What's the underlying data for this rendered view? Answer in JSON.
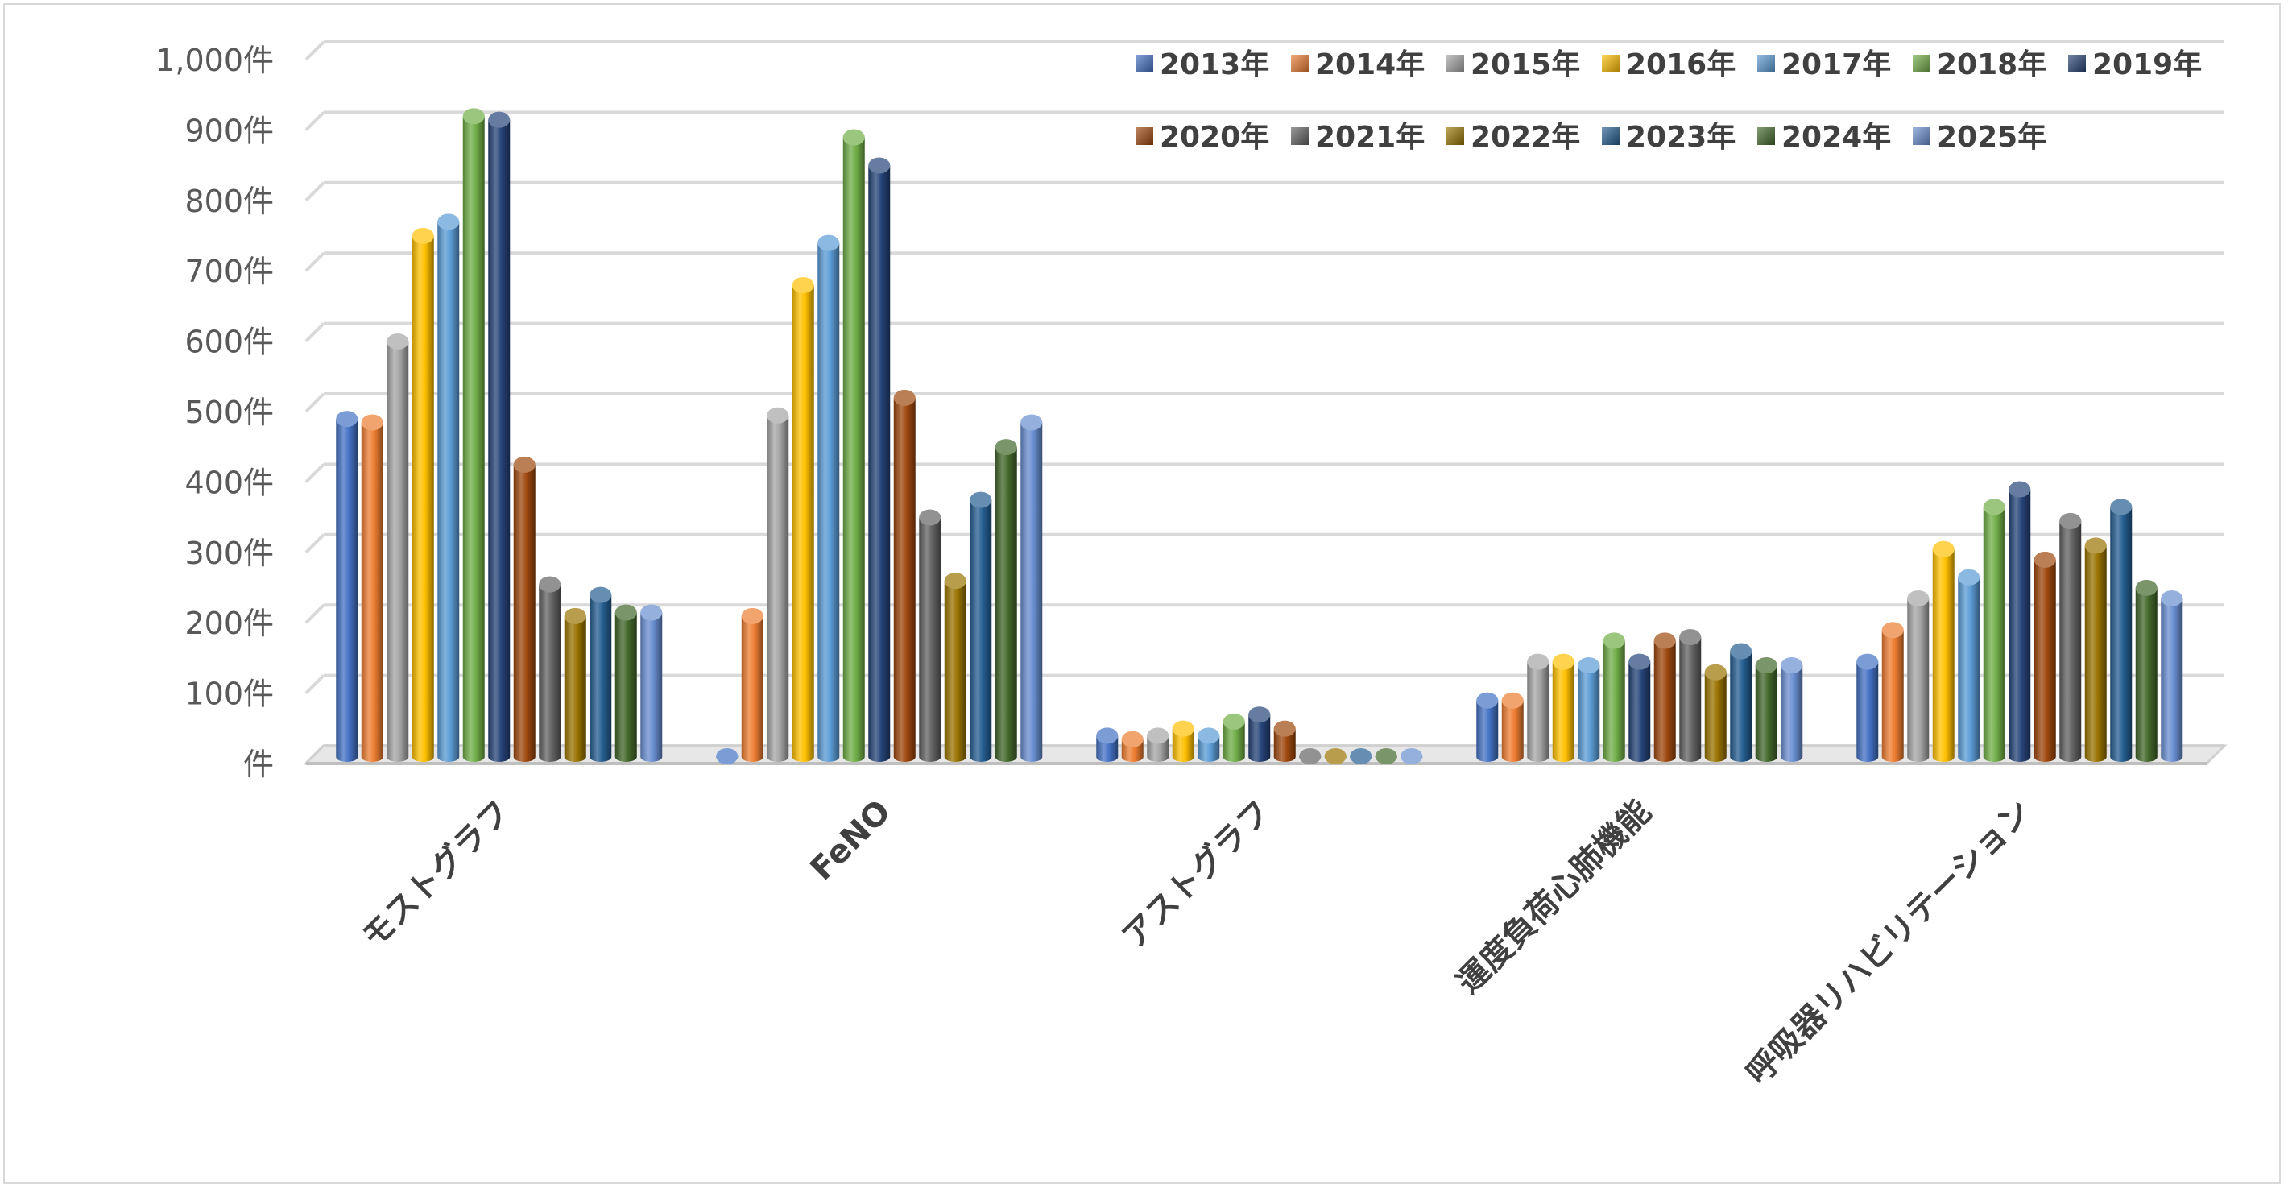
{
  "chart_data": {
    "type": "bar",
    "style": "3d-cylinder",
    "categories": [
      "モストグラフ",
      "FeNO",
      "アストグラフ",
      "運度負荷心肺機能",
      "呼吸器リハビリテーション"
    ],
    "yticks": [
      0,
      100,
      200,
      300,
      400,
      500,
      600,
      700,
      800,
      900,
      1000
    ],
    "ytick_labels": [
      "件",
      "100件",
      "200件",
      "300件",
      "400件",
      "500件",
      "600件",
      "700件",
      "800件",
      "900件",
      "1,000件"
    ],
    "ylim": [
      0,
      1000
    ],
    "grid": true,
    "legend_position": "top-right",
    "series": [
      {
        "name": "2013年",
        "color": "#4472C4",
        "values": [
          485,
          0,
          35,
          85,
          140
        ]
      },
      {
        "name": "2014年",
        "color": "#ED7D31",
        "values": [
          480,
          205,
          30,
          85,
          185
        ]
      },
      {
        "name": "2015年",
        "color": "#A5A5A5",
        "values": [
          595,
          490,
          35,
          140,
          230
        ]
      },
      {
        "name": "2016年",
        "color": "#FFC000",
        "values": [
          745,
          675,
          45,
          140,
          300
        ]
      },
      {
        "name": "2017年",
        "color": "#5B9BD5",
        "values": [
          765,
          735,
          35,
          135,
          260
        ]
      },
      {
        "name": "2018年",
        "color": "#70AD47",
        "values": [
          915,
          885,
          55,
          170,
          360
        ]
      },
      {
        "name": "2019年",
        "color": "#264478",
        "values": [
          910,
          845,
          65,
          140,
          385
        ]
      },
      {
        "name": "2020年",
        "color": "#9E480E",
        "values": [
          420,
          515,
          45,
          170,
          285
        ]
      },
      {
        "name": "2021年",
        "color": "#636363",
        "values": [
          250,
          345,
          5,
          175,
          340
        ]
      },
      {
        "name": "2022年",
        "color": "#997300",
        "values": [
          205,
          255,
          5,
          125,
          305
        ]
      },
      {
        "name": "2023年",
        "color": "#255E91",
        "values": [
          235,
          370,
          5,
          155,
          360
        ]
      },
      {
        "name": "2024年",
        "color": "#43682B",
        "values": [
          210,
          445,
          5,
          135,
          245
        ]
      },
      {
        "name": "2025年",
        "color": "#698ED0",
        "values": [
          210,
          480,
          3,
          135,
          230
        ]
      }
    ]
  }
}
